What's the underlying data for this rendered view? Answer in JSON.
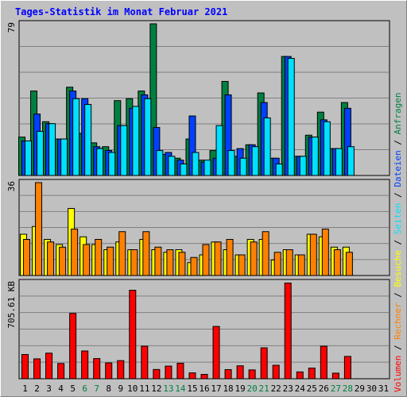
{
  "title": "Tages-Statistik im Monat Februar 2021",
  "legend": {
    "volumen": "Volumen",
    "rechner": "Rechner",
    "besuche": "Besuche",
    "seiten": "Seiten",
    "dateien": "Dateien",
    "anfragen": "Anfragen",
    "separator": " / ",
    "colors": {
      "volumen": "#ff0000",
      "rechner": "#ff8000",
      "besuche": "#ffff00",
      "seiten": "#00e0ff",
      "dateien": "#0040ff",
      "anfragen": "#008040"
    }
  },
  "weekend_color": "#008040",
  "weekday_color": "#000000",
  "chart_data": {
    "type": "bar",
    "x": [
      "1",
      "2",
      "3",
      "4",
      "5",
      "6",
      "7",
      "8",
      "9",
      "10",
      "11",
      "12",
      "13",
      "14",
      "15",
      "16",
      "17",
      "18",
      "19",
      "20",
      "21",
      "22",
      "23",
      "24",
      "25",
      "26",
      "27",
      "28",
      "29",
      "30",
      "31"
    ],
    "weekend_days": [
      "6",
      "7",
      "13",
      "14",
      "20",
      "21",
      "27",
      "28"
    ],
    "panels": [
      {
        "name": "anfragen-dateien-seiten",
        "ymax_label": "79",
        "ymax": 79,
        "series": [
          {
            "name": "Anfragen",
            "color": "#008040",
            "values": [
              20,
              44,
              28,
              19,
              46,
              22,
              17,
              15,
              39,
              40,
              44,
              79,
              11,
              9,
              19,
              8,
              13,
              49,
              10,
              16,
              43,
              9,
              62,
              10,
              21,
              33,
              14,
              38,
              0,
              0,
              0
            ]
          },
          {
            "name": "Dateien",
            "color": "#0040ff",
            "values": [
              18,
              32,
              27,
              19,
              44,
              40,
              15,
              13,
              26,
              35,
              42,
              25,
              12,
              8,
              31,
              7,
              9,
              42,
              14,
              16,
              38,
              9,
              62,
              10,
              20,
              29,
              14,
              35,
              0,
              0,
              0
            ]
          },
          {
            "name": "Seiten",
            "color": "#00e0ff",
            "values": [
              18,
              23,
              27,
              19,
              40,
              37,
              14,
              12,
              26,
              36,
              40,
              13,
              10,
              6,
              12,
              8,
              26,
              13,
              9,
              15,
              30,
              6,
              61,
              10,
              20,
              28,
              14,
              15,
              0,
              0,
              0
            ]
          }
        ]
      },
      {
        "name": "besuche-rechner",
        "ymax_label": "36",
        "ymax": 36,
        "series": [
          {
            "name": "Besuche",
            "color": "#ffff00",
            "values": [
              16,
              19,
              14,
              12,
              26,
              15,
              12,
              10,
              13,
              10,
              14,
              10,
              9,
              10,
              5,
              8,
              13,
              10,
              8,
              14,
              14,
              6,
              10,
              8,
              16,
              15,
              11,
              11,
              0,
              0,
              0
            ]
          },
          {
            "name": "Rechner",
            "color": "#ff8000",
            "values": [
              14,
              36,
              13,
              11,
              18,
              12,
              14,
              11,
              17,
              10,
              17,
              11,
              10,
              9,
              7,
              12,
              13,
              14,
              8,
              13,
              17,
              9,
              10,
              8,
              16,
              18,
              10,
              9,
              0,
              0,
              0
            ]
          }
        ]
      },
      {
        "name": "volumen",
        "ymax_label": "705.61 KB",
        "ymax": 705.61,
        "series": [
          {
            "name": "Volumen",
            "color": "#ff0000",
            "values": [
              178,
              146,
              188,
              112,
              480,
              204,
              148,
              116,
              133,
              650,
              239,
              68,
              93,
              114,
              43,
              32,
              384,
              67,
              95,
              65,
              227,
              99,
              703,
              50,
              78,
              239,
              41,
              164,
              0,
              0,
              0
            ]
          }
        ]
      }
    ]
  }
}
